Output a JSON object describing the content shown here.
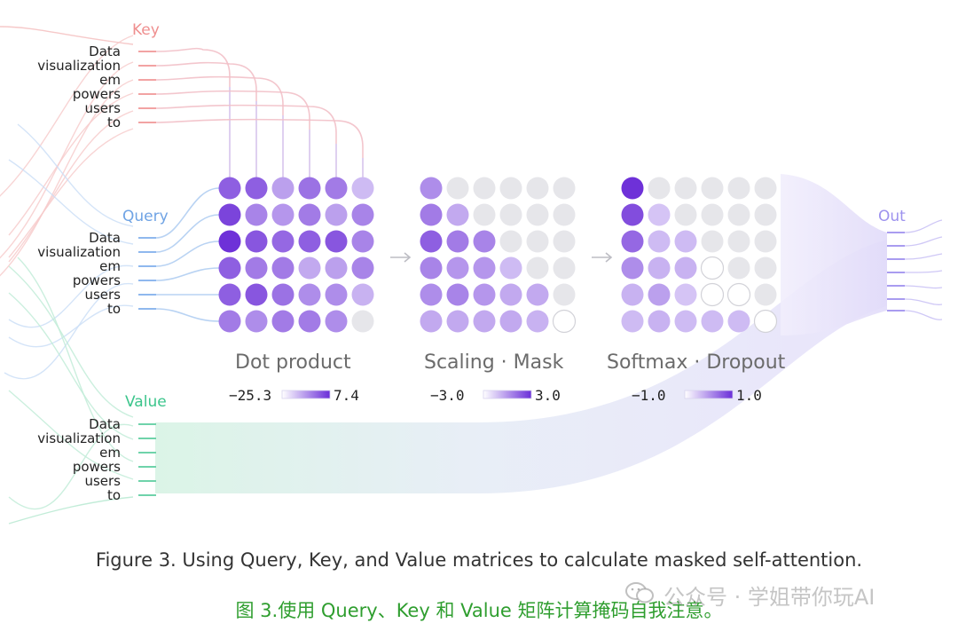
{
  "tokens": [
    "Data",
    "visualization",
    "em",
    "powers",
    "users",
    "to"
  ],
  "sections": {
    "key": {
      "label": "Key",
      "color": "#f2a3a3"
    },
    "query": {
      "label": "Query",
      "color": "#8fb8ee"
    },
    "value": {
      "label": "Value",
      "color": "#6fd3aa"
    },
    "out": {
      "label": "Out",
      "color": "#a99cf0"
    }
  },
  "stages": [
    {
      "title": "Dot product",
      "min_label": "−25.3",
      "max_label": "7.4",
      "matrix": [
        [
          0.7,
          0.7,
          0.35,
          0.6,
          0.55,
          0.2
        ],
        [
          0.85,
          0.5,
          0.4,
          0.55,
          0.35,
          0.5
        ],
        [
          0.95,
          0.75,
          0.65,
          0.7,
          0.75,
          0.5
        ],
        [
          0.7,
          0.55,
          0.55,
          0.3,
          0.35,
          0.5
        ],
        [
          0.7,
          0.75,
          0.6,
          0.45,
          0.45,
          0.25
        ],
        [
          0.55,
          0.45,
          0.55,
          0.55,
          0.45,
          -1
        ]
      ]
    },
    {
      "title": "Scaling · Mask",
      "min_label": "−3.0",
      "max_label": "3.0",
      "matrix": [
        [
          0.45,
          -1,
          -1,
          -1,
          -1,
          -1
        ],
        [
          0.55,
          0.3,
          -1,
          -1,
          -1,
          -1
        ],
        [
          0.7,
          0.55,
          0.5,
          -1,
          -1,
          -1
        ],
        [
          0.5,
          0.4,
          0.4,
          0.2,
          -1,
          -1
        ],
        [
          0.45,
          0.5,
          0.4,
          0.3,
          0.3,
          -1
        ],
        [
          0.3,
          0.3,
          0.3,
          0.3,
          0.25,
          -2
        ]
      ]
    },
    {
      "title": "Softmax · Dropout",
      "min_label": "−1.0",
      "max_label": "1.0",
      "matrix": [
        [
          0.95,
          -1,
          -1,
          -1,
          -1,
          -1
        ],
        [
          0.8,
          0.15,
          -1,
          -1,
          -1,
          -1
        ],
        [
          0.65,
          0.2,
          0.2,
          -1,
          -1,
          -1
        ],
        [
          0.45,
          0.25,
          0.25,
          -2,
          -1,
          -1
        ],
        [
          0.25,
          0.35,
          0.15,
          -2,
          -2,
          -1
        ],
        [
          0.2,
          0.25,
          0.2,
          0.2,
          0.2,
          -2
        ]
      ]
    }
  ],
  "caption": "Figure 3. Using Query, Key, and Value matrices to calculate masked self-attention.",
  "caption_cn": "图 3.使用 Query、Key 和 Value 矩阵计算掩码自我注意。",
  "watermark": "公众号 · 学姐带你玩AI",
  "arrow_glyph": "→"
}
